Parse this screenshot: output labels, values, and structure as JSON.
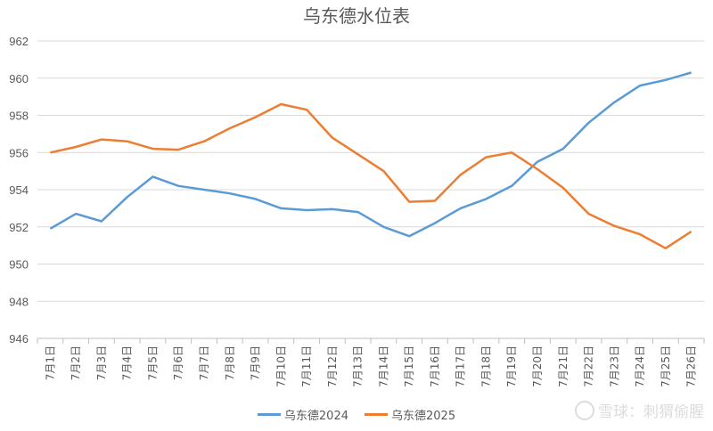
{
  "chart_data": {
    "type": "line",
    "title": "乌东德水位表",
    "categories": [
      "7月1日",
      "7月2日",
      "7月3日",
      "7月4日",
      "7月5日",
      "7月6日",
      "7月7日",
      "7月8日",
      "7月9日",
      "7月10日",
      "7月11日",
      "7月12日",
      "7月13日",
      "7月14日",
      "7月15日",
      "7月16日",
      "7月17日",
      "7月18日",
      "7月19日",
      "7月20日",
      "7月21日",
      "7月22日",
      "7月23日",
      "7月24日",
      "7月25日",
      "7月26日"
    ],
    "series": [
      {
        "name": "乌东德2024",
        "color": "#5b9bd5",
        "values": [
          951.9,
          952.7,
          952.3,
          953.6,
          954.7,
          954.2,
          954.0,
          953.8,
          953.5,
          953.0,
          952.9,
          952.95,
          952.8,
          952.0,
          951.5,
          952.2,
          953.0,
          953.5,
          954.2,
          955.5,
          956.2,
          957.6,
          958.7,
          959.6,
          959.9,
          960.3
        ]
      },
      {
        "name": "乌东德2025",
        "color": "#ed7d31",
        "values": [
          956.0,
          956.3,
          956.7,
          956.6,
          956.2,
          956.15,
          956.6,
          957.3,
          957.9,
          958.6,
          958.3,
          956.8,
          955.9,
          955.0,
          953.35,
          953.4,
          954.8,
          955.75,
          956.0,
          955.1,
          954.1,
          952.7,
          952.05,
          951.6,
          950.85,
          951.75
        ]
      }
    ],
    "ylim": [
      946,
      962
    ],
    "yticks": [
      946,
      948,
      950,
      952,
      954,
      956,
      958,
      960,
      962
    ],
    "grid": true,
    "legend": "bottom"
  },
  "watermark": {
    "text": "雪球：刺猬偷腥"
  }
}
